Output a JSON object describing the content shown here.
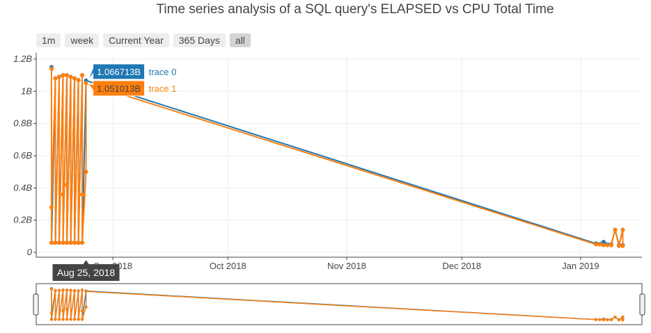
{
  "chart_data": {
    "type": "line",
    "title": "Time series analysis of a SQL query's ELAPSED vs CPU Total Time",
    "xlabel": "",
    "ylabel": "",
    "x_range": [
      "2018-08-12",
      "2019-01-17"
    ],
    "ylim": [
      -30000000,
      1230000000
    ],
    "x_ticks": [
      {
        "date": "2018-09-01",
        "label": "Sep 2018"
      },
      {
        "date": "2018-10-01",
        "label": "Oct 2018"
      },
      {
        "date": "2018-11-01",
        "label": "Nov 2018"
      },
      {
        "date": "2018-12-01",
        "label": "Dec 2018"
      },
      {
        "date": "2019-01-01",
        "label": "Jan 2019"
      }
    ],
    "y_ticks": [
      {
        "value": 0,
        "label": "0"
      },
      {
        "value": 200000000,
        "label": "0.2B"
      },
      {
        "value": 400000000,
        "label": "0.4B"
      },
      {
        "value": 600000000,
        "label": "0.6B"
      },
      {
        "value": 800000000,
        "label": "0.8B"
      },
      {
        "value": 1000000000,
        "label": "1B"
      },
      {
        "value": 1200000000,
        "label": "1.2B"
      }
    ],
    "grid": true,
    "legend": "none",
    "range_selector": [
      "1m",
      "week",
      "Current Year",
      "365 Days",
      "all"
    ],
    "range_selector_active": "all",
    "range_slider": true,
    "series": [
      {
        "name": "trace 0",
        "color": "#1f77b4",
        "x": [
          "2018-08-16",
          "2018-08-16",
          "2018-08-17",
          "2018-08-17",
          "2018-08-18",
          "2018-08-18",
          "2018-08-19",
          "2018-08-19",
          "2018-08-20",
          "2018-08-20",
          "2018-08-21",
          "2018-08-21",
          "2018-08-22",
          "2018-08-22",
          "2018-08-23",
          "2018-08-23",
          "2018-08-24",
          "2018-08-24",
          "2018-08-25",
          "2019-01-05",
          "2019-01-07",
          "2019-01-08",
          "2019-01-09",
          "2019-01-10",
          "2019-01-11",
          "2019-01-12",
          "2019-01-12"
        ],
        "y": [
          1150000000,
          60000000,
          1080000000,
          60000000,
          1090000000,
          60000000,
          1100000000,
          60000000,
          1100000000,
          60000000,
          1090000000,
          60000000,
          1080000000,
          60000000,
          1070000000,
          60000000,
          1100000000,
          60000000,
          1066713000,
          55000000,
          65000000,
          50000000,
          50000000,
          140000000,
          45000000,
          140000000,
          45000000
        ]
      },
      {
        "name": "trace 1",
        "color": "#ff7f0e",
        "x": [
          "2018-08-16",
          "2018-08-16",
          "2018-08-16",
          "2018-08-17",
          "2018-08-17",
          "2018-08-18",
          "2018-08-18",
          "2018-08-19",
          "2018-08-19",
          "2018-08-19",
          "2018-08-20",
          "2018-08-20",
          "2018-08-20",
          "2018-08-21",
          "2018-08-21",
          "2018-08-22",
          "2018-08-22",
          "2018-08-23",
          "2018-08-23",
          "2018-08-24",
          "2018-08-24",
          "2018-08-24",
          "2018-08-25",
          "2018-08-25",
          "2019-01-05",
          "2019-01-06",
          "2019-01-07",
          "2019-01-08",
          "2019-01-09",
          "2019-01-10",
          "2019-01-11",
          "2019-01-12",
          "2019-01-12"
        ],
        "y": [
          1140000000,
          60000000,
          280000000,
          1080000000,
          60000000,
          1090000000,
          60000000,
          1100000000,
          360000000,
          60000000,
          1100000000,
          420000000,
          60000000,
          1090000000,
          60000000,
          1080000000,
          60000000,
          1070000000,
          60000000,
          1100000000,
          360000000,
          60000000,
          500000000,
          1051013000,
          50000000,
          50000000,
          45000000,
          45000000,
          45000000,
          140000000,
          40000000,
          140000000,
          40000000
        ]
      }
    ],
    "hover": {
      "x_label": "Aug 25, 2018",
      "points": [
        {
          "series": "trace 0",
          "value_label": "1.066713B"
        },
        {
          "series": "trace 1",
          "value_label": "1.051013B"
        }
      ]
    }
  }
}
